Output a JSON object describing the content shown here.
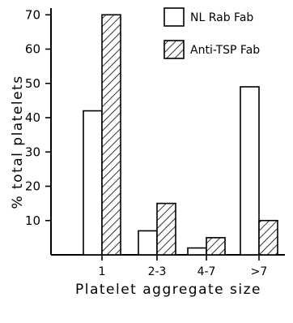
{
  "chart_data": {
    "type": "bar",
    "categories": [
      "1",
      "2-3",
      "4-7",
      ">7"
    ],
    "series": [
      {
        "name": "NL Rab Fab",
        "values": [
          42,
          7,
          2,
          49
        ],
        "pattern": "open"
      },
      {
        "name": "Anti-TSP Fab",
        "values": [
          70,
          15,
          5,
          10
        ],
        "pattern": "hatched"
      }
    ],
    "xlabel": "Platelet aggregate size",
    "ylabel": "% total platelets",
    "yticks": [
      10,
      20,
      30,
      40,
      50,
      60,
      70
    ],
    "ylim": [
      0,
      74
    ],
    "grid": false,
    "legend_position": "top-right"
  }
}
